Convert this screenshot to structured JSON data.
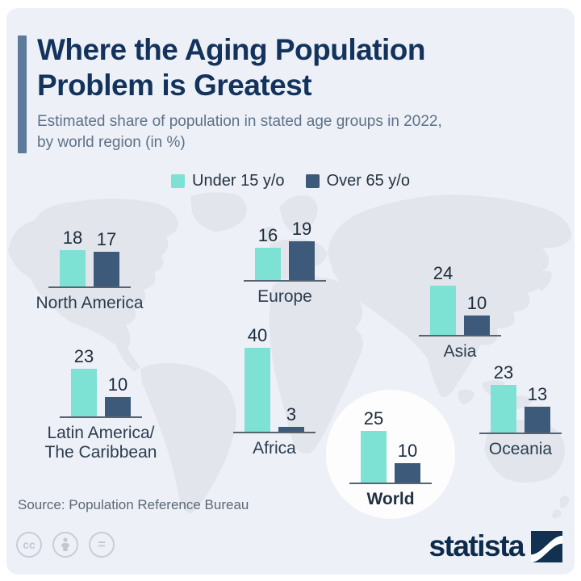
{
  "header": {
    "title_line1": "Where the Aging Population",
    "title_line2": "Problem is Greatest",
    "subtitle_line1": "Estimated share of population in stated age groups in 2022,",
    "subtitle_line2": "by world region (in %)"
  },
  "legend": {
    "under15_label": "Under 15 y/o",
    "over65_label": "Over 65 y/o"
  },
  "colors": {
    "under15_bar": "#7de1d3",
    "over65_bar": "#3d5a7a",
    "title_text": "#13335c",
    "accent_bar": "#5b7a9c",
    "card_background": "#edf1f7",
    "map_silhouette": "#e2e6ec"
  },
  "chart_data": {
    "type": "bar",
    "title": "Where the Aging Population Problem is Greatest",
    "subtitle": "Estimated share of population in stated age groups in 2022, by world region (in %)",
    "unit": "%",
    "legend": [
      "Under 15 y/o",
      "Over 65 y/o"
    ],
    "legend_position": "top",
    "grid": false,
    "categories": [
      "North America",
      "Europe",
      "Asia",
      "Latin America/The Caribbean",
      "Africa",
      "World",
      "Oceania"
    ],
    "series": [
      {
        "name": "Under 15 y/o",
        "values": [
          18,
          16,
          24,
          23,
          40,
          25,
          23
        ]
      },
      {
        "name": "Over 65 y/o",
        "values": [
          17,
          19,
          10,
          10,
          3,
          10,
          13
        ]
      }
    ],
    "value_labels": true,
    "layout": "grouped bars placed over world-map background near each region"
  },
  "groups": [
    {
      "label": "North America",
      "under15": 18,
      "over65": 17
    },
    {
      "label": "Europe",
      "under15": 16,
      "over65": 19
    },
    {
      "label": "Asia",
      "under15": 24,
      "over65": 10
    },
    {
      "label": "Latin America/\nThe Caribbean",
      "under15": 23,
      "over65": 10
    },
    {
      "label": "Africa",
      "under15": 40,
      "over65": 3
    },
    {
      "label": "World",
      "under15": 25,
      "over65": 10
    },
    {
      "label": "Oceania",
      "under15": 23,
      "over65": 13
    }
  ],
  "footer": {
    "source": "Source: Population Reference Bureau",
    "brand": "statista",
    "cc_text": "cc",
    "equals_text": "="
  }
}
